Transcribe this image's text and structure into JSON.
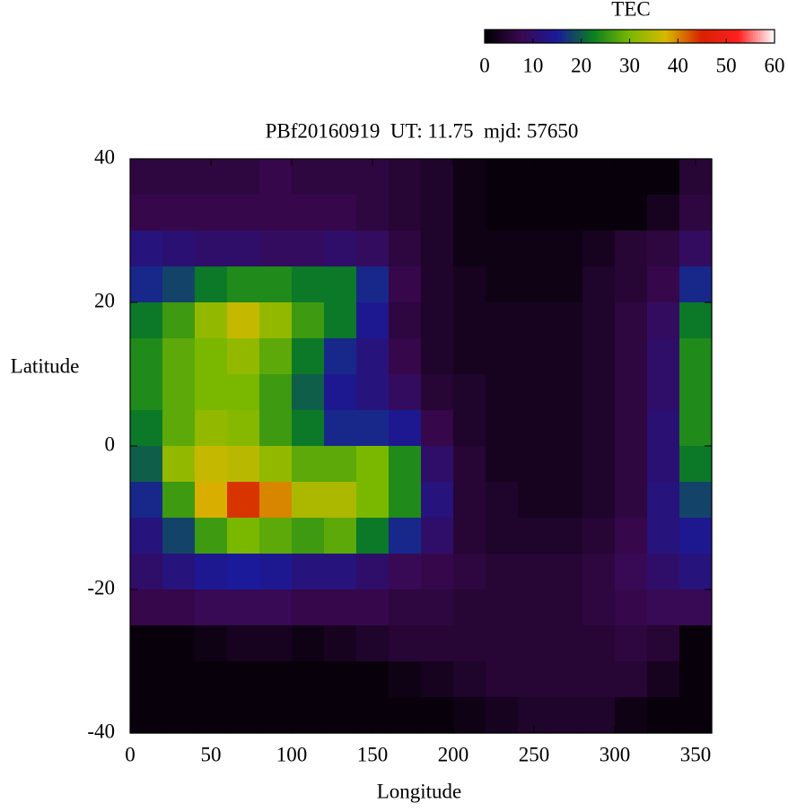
{
  "chart_data": {
    "type": "heatmap",
    "title": "PBf20160919  UT: 11.75  mjd: 57650",
    "x_label": "Longitude",
    "y_label": "Latitude",
    "x": [
      10,
      30,
      50,
      70,
      90,
      110,
      130,
      150,
      170,
      190,
      210,
      230,
      250,
      270,
      290,
      310,
      330,
      350
    ],
    "y": [
      37.5,
      32.5,
      27.5,
      22.5,
      17.5,
      12.5,
      7.5,
      2.5,
      -2.5,
      -7.5,
      -12.5,
      -17.5,
      -22.5,
      -27.5,
      -32.5,
      -37.5
    ],
    "values": [
      [
        6,
        6,
        6,
        6,
        7,
        6,
        6,
        6,
        5,
        4,
        2,
        1,
        1,
        1,
        1,
        1,
        1,
        5
      ],
      [
        7,
        7,
        7,
        7,
        7,
        7,
        7,
        6,
        5,
        4,
        2,
        1,
        1,
        1,
        1,
        1,
        3,
        6
      ],
      [
        12,
        11,
        10,
        10,
        9,
        9,
        10,
        9,
        6,
        4,
        2,
        2,
        2,
        2,
        3,
        5,
        6,
        9
      ],
      [
        16,
        18,
        22,
        24,
        24,
        22,
        22,
        16,
        7,
        4,
        3,
        2,
        2,
        2,
        4,
        5,
        7,
        16
      ],
      [
        22,
        26,
        32,
        36,
        32,
        26,
        22,
        14,
        6,
        4,
        3,
        3,
        3,
        3,
        4,
        6,
        9,
        22
      ],
      [
        24,
        28,
        30,
        32,
        28,
        22,
        16,
        12,
        7,
        4,
        3,
        3,
        3,
        3,
        4,
        6,
        10,
        24
      ],
      [
        24,
        28,
        30,
        30,
        26,
        20,
        14,
        12,
        9,
        5,
        4,
        3,
        3,
        3,
        4,
        6,
        10,
        24
      ],
      [
        22,
        28,
        32,
        31,
        26,
        22,
        16,
        16,
        14,
        7,
        4,
        3,
        3,
        3,
        4,
        6,
        11,
        24
      ],
      [
        20,
        32,
        36,
        35,
        32,
        28,
        28,
        30,
        24,
        10,
        5,
        3,
        3,
        3,
        4,
        6,
        11,
        22
      ],
      [
        16,
        26,
        38,
        44,
        40,
        34,
        34,
        30,
        24,
        12,
        5,
        4,
        3,
        3,
        4,
        6,
        12,
        18
      ],
      [
        12,
        18,
        26,
        30,
        28,
        26,
        28,
        22,
        16,
        10,
        5,
        4,
        4,
        4,
        5,
        7,
        12,
        14
      ],
      [
        10,
        12,
        14,
        15,
        14,
        12,
        12,
        10,
        8,
        7,
        6,
        5,
        5,
        5,
        6,
        8,
        10,
        12
      ],
      [
        7,
        7,
        8,
        8,
        8,
        7,
        7,
        7,
        6,
        6,
        5,
        5,
        5,
        5,
        6,
        7,
        8,
        8
      ],
      [
        1,
        1,
        2,
        3,
        3,
        2,
        3,
        4,
        5,
        5,
        5,
        5,
        5,
        5,
        5,
        6,
        5,
        1
      ],
      [
        1,
        1,
        1,
        1,
        1,
        1,
        1,
        1,
        2,
        3,
        4,
        5,
        5,
        5,
        5,
        5,
        3,
        1
      ],
      [
        1,
        1,
        1,
        1,
        1,
        1,
        1,
        1,
        1,
        1,
        2,
        3,
        4,
        4,
        4,
        2,
        1,
        1
      ]
    ],
    "xlim": [
      0,
      360
    ],
    "ylim": [
      -40,
      40
    ],
    "xticks": [
      0,
      50,
      100,
      150,
      200,
      250,
      300,
      350
    ],
    "yticks": [
      -40,
      -20,
      0,
      20,
      40
    ],
    "colorbar": {
      "label": "TEC",
      "lim": [
        0,
        60
      ],
      "ticks": [
        0,
        10,
        20,
        30,
        40,
        50,
        60
      ],
      "colors": [
        "#000000",
        "#3a0850",
        "#1a1a9a",
        "#0a8020",
        "#7ab800",
        "#d8b800",
        "#d82000",
        "#ff2020",
        "#ffffff"
      ]
    }
  }
}
